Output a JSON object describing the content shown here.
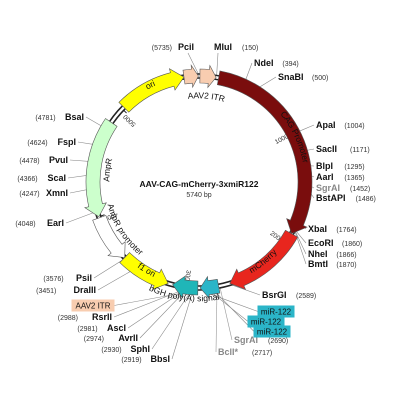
{
  "plasmid": {
    "name": "AAV-CAG-mCherry-3xmiR122",
    "length_label": "5740 bp",
    "length": 5740
  },
  "ticks": [
    "1000",
    "2000",
    "3000",
    "4000",
    "5000"
  ],
  "features": [
    {
      "name": "AAV2 ITR",
      "start": 8,
      "end": 148,
      "color": "#f8cdb0",
      "label": "AAV2 ITR"
    },
    {
      "name": "CAG Promoter",
      "start": 170,
      "end": 1900,
      "color": "#7a0d0d",
      "label": "CAG Promoter"
    },
    {
      "name": "mCherry",
      "start": 1900,
      "end": 2600,
      "color": "#e8261e",
      "label": "mCherry"
    },
    {
      "name": "miR-122 x3",
      "start": 2700,
      "end": 2860,
      "color": "#2bb5c8",
      "label": ""
    },
    {
      "name": "bGH poly(A) signal",
      "start": 2880,
      "end": 3100,
      "color": "#1fb6b8",
      "label": "bGH poly(A) signal"
    },
    {
      "name": "f1 ori",
      "start": 3140,
      "end": 3580,
      "color": "#ffff00",
      "label": "f1 ori"
    },
    {
      "name": "AmpR promoter",
      "start": 3580,
      "end": 3990,
      "color": "#ffffff",
      "label": "AmpR promoter"
    },
    {
      "name": "AmpR",
      "start": 4000,
      "end": 4850,
      "color": "#ccffcc",
      "label": "AmpR"
    },
    {
      "name": "ori",
      "start": 5020,
      "end": 5610,
      "color": "#ffff00",
      "label": "ori"
    },
    {
      "name": "AAV2 ITR 2",
      "start": 5610,
      "end": 5735,
      "color": "#f8cdb0",
      "label": ""
    }
  ],
  "sites": [
    {
      "name": "PciI",
      "pos": "(5735)"
    },
    {
      "name": "MluI",
      "pos": "(150)"
    },
    {
      "name": "NdeI",
      "pos": "(394)"
    },
    {
      "name": "SnaBI",
      "pos": "(500)"
    },
    {
      "name": "ApaI",
      "pos": "(1004)"
    },
    {
      "name": "SacII",
      "pos": "(1171)"
    },
    {
      "name": "BlpI",
      "pos": "(1295)"
    },
    {
      "name": "AarI",
      "pos": "(1365)"
    },
    {
      "name": "SgrAI",
      "pos": "(1452)",
      "muted": true
    },
    {
      "name": "BstAPI",
      "pos": "(1486)"
    },
    {
      "name": "XbaI",
      "pos": "(1764)"
    },
    {
      "name": "EcoRI",
      "pos": "(1860)"
    },
    {
      "name": "NheI",
      "pos": "(1866)"
    },
    {
      "name": "BmtI",
      "pos": "(1870)"
    },
    {
      "name": "BsrGI",
      "pos": "(2589)"
    },
    {
      "name": "SgrAI",
      "pos": "(2690)",
      "muted": true
    },
    {
      "name": "BclI*",
      "pos": "(2717)",
      "muted": true
    },
    {
      "name": "BbsI",
      "pos": "(2919)"
    },
    {
      "name": "SphI",
      "pos": "(2930)"
    },
    {
      "name": "AvrII",
      "pos": "(2974)"
    },
    {
      "name": "AscI",
      "pos": "(2981)"
    },
    {
      "name": "RsrII",
      "pos": "(2988)"
    },
    {
      "name": "DraIII",
      "pos": "(3451)"
    },
    {
      "name": "PsiI",
      "pos": "(3576)"
    },
    {
      "name": "EarI",
      "pos": "(4048)"
    },
    {
      "name": "XmnI",
      "pos": "(4247)"
    },
    {
      "name": "ScaI",
      "pos": "(4366)"
    },
    {
      "name": "PvuI",
      "pos": "(4478)"
    },
    {
      "name": "FspI",
      "pos": "(4624)"
    },
    {
      "name": "BsaI",
      "pos": "(4781)"
    }
  ],
  "label_boxes": [
    {
      "text": "AAV2 ITR",
      "color": "#f8cdb0"
    },
    {
      "text": "miR-122",
      "color": "#2bb5c8"
    },
    {
      "text": "miR-122",
      "color": "#2bb5c8"
    },
    {
      "text": "miR-122",
      "color": "#2bb5c8"
    }
  ]
}
